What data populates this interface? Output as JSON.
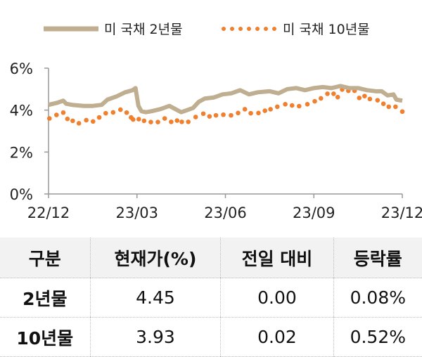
{
  "chart_data": {
    "type": "line",
    "title": "",
    "xlabel": "",
    "ylabel": "",
    "x_unit": "months since 22/12",
    "xlim": [
      0,
      12
    ],
    "ylim": [
      0,
      6
    ],
    "x_ticks": [
      {
        "v": 0,
        "label": "22/12"
      },
      {
        "v": 3,
        "label": "23/03"
      },
      {
        "v": 6,
        "label": "23/06"
      },
      {
        "v": 9,
        "label": "23/09"
      },
      {
        "v": 12,
        "label": "23/12"
      }
    ],
    "y_ticks": [
      {
        "v": 0,
        "label": "0%"
      },
      {
        "v": 2,
        "label": "2%"
      },
      {
        "v": 4,
        "label": "4%"
      },
      {
        "v": 6,
        "label": "6%"
      }
    ],
    "legend_placement": "top",
    "series": [
      {
        "name": "미 국채 2년물",
        "color": "#bfae8f",
        "style": "solid",
        "x": [
          0,
          0.3,
          0.5,
          0.6,
          0.8,
          1.2,
          1.5,
          1.8,
          2.0,
          2.3,
          2.6,
          2.85,
          2.95,
          3.05,
          3.15,
          3.3,
          3.5,
          3.8,
          4.1,
          4.3,
          4.5,
          4.7,
          4.9,
          5.1,
          5.3,
          5.6,
          5.9,
          6.2,
          6.5,
          6.8,
          7.1,
          7.5,
          7.8,
          8.1,
          8.4,
          8.7,
          9.0,
          9.3,
          9.6,
          9.9,
          10.2,
          10.5,
          10.8,
          11.1,
          11.3,
          11.5,
          11.7,
          11.8,
          12
        ],
        "y": [
          4.25,
          4.35,
          4.45,
          4.3,
          4.25,
          4.2,
          4.2,
          4.25,
          4.5,
          4.65,
          4.85,
          4.95,
          5.05,
          4.2,
          3.95,
          3.9,
          3.95,
          4.05,
          4.2,
          4.05,
          3.9,
          4.0,
          4.1,
          4.4,
          4.55,
          4.6,
          4.75,
          4.8,
          4.95,
          4.75,
          4.85,
          4.9,
          4.8,
          5.0,
          5.05,
          4.95,
          5.05,
          5.1,
          5.05,
          5.15,
          5.05,
          5.05,
          4.95,
          4.9,
          4.9,
          4.7,
          4.75,
          4.5,
          4.45
        ]
      },
      {
        "name": "미 국채 10년물",
        "color": "#f07f2e",
        "style": "dotted",
        "x": [
          0.03,
          0.27,
          0.5,
          0.64,
          0.82,
          1.03,
          1.28,
          1.51,
          1.72,
          1.94,
          2.19,
          2.44,
          2.65,
          2.8,
          2.87,
          3.06,
          3.24,
          3.47,
          3.71,
          3.94,
          4.16,
          4.36,
          4.52,
          4.74,
          4.99,
          5.25,
          5.46,
          5.68,
          5.93,
          6.19,
          6.43,
          6.66,
          6.86,
          7.12,
          7.34,
          7.53,
          7.76,
          8.03,
          8.26,
          8.5,
          8.78,
          9.03,
          9.24,
          9.46,
          9.67,
          9.81,
          9.96,
          10.17,
          10.38,
          10.54,
          10.72,
          10.9,
          11.16,
          11.36,
          11.54,
          11.77,
          12
        ],
        "y": [
          3.6,
          3.77,
          3.88,
          3.58,
          3.49,
          3.37,
          3.52,
          3.46,
          3.65,
          3.85,
          3.89,
          4.02,
          3.88,
          3.65,
          3.55,
          3.57,
          3.49,
          3.43,
          3.43,
          3.6,
          3.44,
          3.5,
          3.44,
          3.44,
          3.67,
          3.83,
          3.7,
          3.75,
          3.78,
          3.75,
          3.86,
          4.04,
          3.85,
          3.86,
          3.97,
          4.04,
          4.16,
          4.28,
          4.22,
          4.19,
          4.28,
          4.42,
          4.56,
          4.78,
          4.78,
          4.62,
          4.98,
          4.92,
          4.92,
          4.58,
          4.67,
          4.53,
          4.47,
          4.3,
          4.16,
          4.16,
          3.93
        ]
      }
    ]
  },
  "table": {
    "headers": [
      "구분",
      "현재가(%)",
      "전일 대비",
      "등락률"
    ],
    "rows": [
      [
        "2년물",
        "4.45",
        "0.00",
        "0.08%"
      ],
      [
        "10년물",
        "3.93",
        "0.02",
        "0.52%"
      ]
    ]
  }
}
